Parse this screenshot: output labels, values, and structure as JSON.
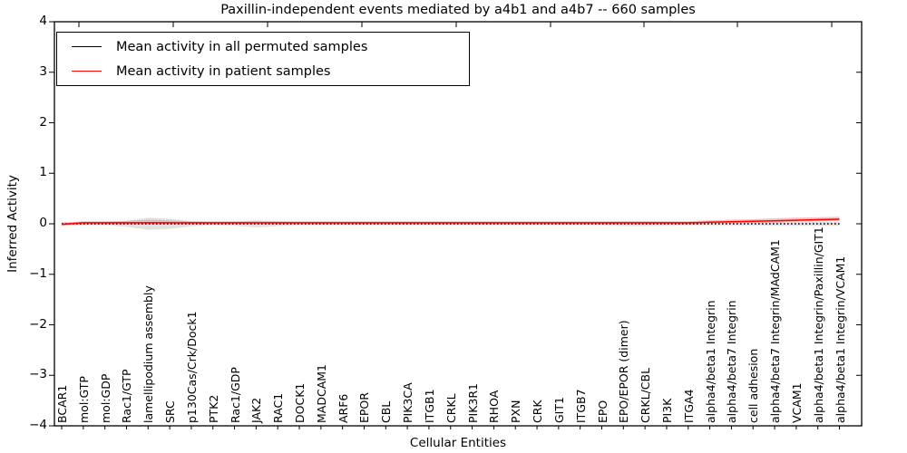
{
  "figure": {
    "title": "Paxillin-independent events mediated by a4b1 and a4b7 -- 660 samples",
    "background_color": "#ffffff",
    "axis_color": "#000000"
  },
  "chart_data": {
    "type": "line",
    "title": "Paxillin-independent events mediated by a4b1 and a4b7 -- 660 samples",
    "xlabel": "Cellular Entities",
    "ylabel": "Inferred Activity",
    "ylim": [
      -4,
      4
    ],
    "yticks": [
      -4,
      -3,
      -2,
      -1,
      0,
      1,
      2,
      3,
      4
    ],
    "ytick_labels": [
      "−4",
      "−3",
      "−2",
      "−1",
      "0",
      "1",
      "2",
      "3",
      "4"
    ],
    "grid": false,
    "legend_position": "upper-left",
    "categories": [
      "BCAR1",
      "mol:GTP",
      "mol:GDP",
      "Rac1/GTP",
      "lamellipodium assembly",
      "SRC",
      "p130Cas/Crk/Dock1",
      "PTK2",
      "Rac1/GDP",
      "JAK2",
      "RAC1",
      "DOCK1",
      "MADCAM1",
      "ARF6",
      "EPOR",
      "CBL",
      "PIK3CA",
      "ITGB1",
      "CRKL",
      "PIK3R1",
      "RHOA",
      "PXN",
      "CRK",
      "GIT1",
      "ITGB7",
      "EPO",
      "EPO/EPOR (dimer)",
      "CRKL/CBL",
      "PI3K",
      "ITGA4",
      "alpha4/beta1 Integrin",
      "alpha4/beta7 Integrin",
      "cell adhesion",
      "alpha4/beta7 Integrin/MAdCAM1",
      "VCAM1",
      "alpha4/beta1 Integrin/Paxillin/GIT1",
      "alpha4/beta1 Integrin/VCAM1"
    ],
    "series": [
      {
        "name": "Mean activity in all permuted samples",
        "color": "#000000",
        "line_style": "dotted",
        "values": [
          0,
          0,
          0,
          0,
          0,
          0,
          0,
          0,
          0,
          0,
          0,
          0,
          0,
          0,
          0,
          0,
          0,
          0,
          0,
          0,
          0,
          0,
          0,
          0,
          0,
          0,
          0,
          0,
          0,
          0,
          0,
          0,
          0,
          0,
          0,
          0,
          0
        ]
      },
      {
        "name": "Mean activity in patient samples",
        "color": "#ff0000",
        "line_style": "solid",
        "values": [
          -0.01,
          0.02,
          0.02,
          0.02,
          0.02,
          0.02,
          0.02,
          0.02,
          0.02,
          0.02,
          0.02,
          0.02,
          0.02,
          0.02,
          0.02,
          0.02,
          0.02,
          0.02,
          0.02,
          0.02,
          0.02,
          0.02,
          0.02,
          0.02,
          0.02,
          0.02,
          0.02,
          0.02,
          0.02,
          0.02,
          0.03,
          0.04,
          0.05,
          0.06,
          0.07,
          0.08,
          0.09
        ]
      }
    ],
    "bands": [
      {
        "name": "permuted samples activity spread",
        "color": "#d9d9d9",
        "opacity": 0.8,
        "upper": [
          0.03,
          0.03,
          0.03,
          0.06,
          0.12,
          0.1,
          0.05,
          0.03,
          0.04,
          0.07,
          0.05,
          0.03,
          0.03,
          0.03,
          0.03,
          0.03,
          0.03,
          0.03,
          0.03,
          0.03,
          0.03,
          0.03,
          0.03,
          0.03,
          0.03,
          0.03,
          0.05,
          0.05,
          0.04,
          0.03,
          0.03,
          0.03,
          0.03,
          0.04,
          0.04,
          0.04,
          0.04
        ],
        "lower": [
          -0.03,
          -0.03,
          -0.03,
          -0.06,
          -0.12,
          -0.1,
          -0.05,
          -0.03,
          -0.04,
          -0.07,
          -0.05,
          -0.03,
          -0.03,
          -0.03,
          -0.03,
          -0.03,
          -0.03,
          -0.03,
          -0.03,
          -0.03,
          -0.03,
          -0.03,
          -0.03,
          -0.03,
          -0.03,
          -0.03,
          -0.05,
          -0.05,
          -0.04,
          -0.03,
          -0.03,
          -0.03,
          -0.03,
          -0.04,
          -0.04,
          -0.04,
          -0.04
        ]
      },
      {
        "name": "patient samples activity spread",
        "color": "#f5a0a0",
        "opacity": 0.65,
        "upper": [
          0.02,
          0.05,
          0.05,
          0.06,
          0.08,
          0.07,
          0.05,
          0.05,
          0.05,
          0.05,
          0.05,
          0.05,
          0.05,
          0.05,
          0.05,
          0.05,
          0.05,
          0.05,
          0.05,
          0.05,
          0.05,
          0.05,
          0.05,
          0.05,
          0.05,
          0.05,
          0.05,
          0.05,
          0.05,
          0.05,
          0.07,
          0.08,
          0.09,
          0.11,
          0.12,
          0.13,
          0.14
        ],
        "lower": [
          -0.04,
          -0.01,
          -0.01,
          -0.01,
          -0.01,
          -0.01,
          -0.01,
          -0.01,
          -0.01,
          -0.01,
          -0.01,
          -0.01,
          -0.01,
          -0.01,
          -0.01,
          -0.01,
          -0.01,
          -0.01,
          -0.01,
          -0.01,
          -0.01,
          -0.01,
          -0.01,
          -0.01,
          -0.01,
          -0.01,
          -0.01,
          -0.01,
          -0.01,
          -0.01,
          0.0,
          0.01,
          0.02,
          0.03,
          0.04,
          0.05,
          0.06
        ]
      }
    ],
    "legend": {
      "entries": [
        {
          "label": "Mean activity in all permuted samples",
          "color": "#000000"
        },
        {
          "label": "Mean activity in patient samples",
          "color": "#ff0000"
        }
      ]
    }
  }
}
